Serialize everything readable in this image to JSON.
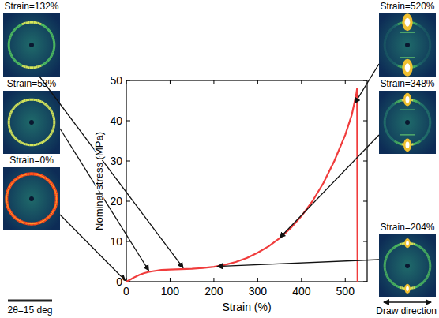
{
  "chart_data": {
    "type": "line",
    "xlabel": "Strain (%)",
    "ylabel": "Nominal stress (MPa)",
    "x": [
      0,
      10,
      20,
      30,
      40,
      50,
      60,
      80,
      100,
      125,
      150,
      175,
      200,
      225,
      250,
      275,
      300,
      325,
      350,
      375,
      400,
      425,
      450,
      475,
      500,
      515,
      525,
      527,
      528
    ],
    "values": [
      0,
      0.6,
      1.2,
      1.7,
      2.1,
      2.4,
      2.6,
      2.9,
      3.0,
      3.1,
      3.2,
      3.4,
      3.7,
      4.2,
      4.9,
      5.9,
      7.2,
      8.8,
      10.8,
      13.3,
      16.3,
      20.0,
      24.5,
      30.0,
      36.5,
      41.5,
      46.5,
      48,
      0
    ],
    "color": "#f03c3c",
    "xlim": [
      0,
      550
    ],
    "ylim": [
      0,
      50
    ],
    "xticks": [
      0,
      100,
      200,
      300,
      400,
      500
    ],
    "yticks": [
      0,
      10,
      20,
      30,
      40,
      50
    ],
    "grid": false,
    "insets": [
      {
        "label": "Strain=132%",
        "strain": 132
      },
      {
        "label": "Strain=53%",
        "strain": 53
      },
      {
        "label": "Strain=0%",
        "strain": 0
      },
      {
        "label": "Strain=520%",
        "strain": 520
      },
      {
        "label": "Strain=348%",
        "strain": 348
      },
      {
        "label": "Strain=204%",
        "strain": 204
      }
    ],
    "annotations": [
      {
        "text": "2θ=15 deg"
      },
      {
        "text": "Draw direction"
      }
    ]
  }
}
